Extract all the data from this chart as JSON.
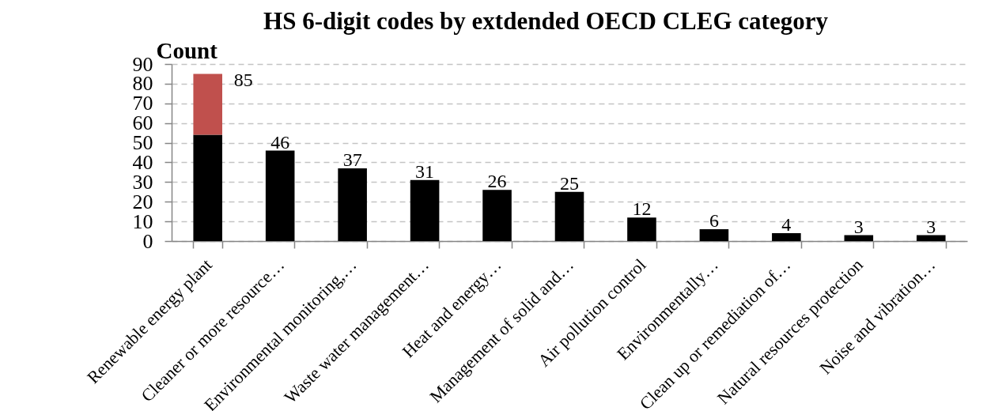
{
  "chart_data": {
    "type": "bar",
    "title": "HS 6-digit codes by extdended OECD CLEG category",
    "ylabel": "Count",
    "categories": [
      "Renewable energy plant",
      "Cleaner or more resource…",
      "Environmental monitoring,…",
      "Waste water management…",
      "Heat and energy…",
      "Management of solid and…",
      "Air pollution control",
      "Environmentally…",
      "Clean up or remediation of…",
      "Natural resources protection",
      "Noise and vibration…"
    ],
    "series": [
      {
        "color": "#000000",
        "values": [
          54,
          46,
          37,
          31,
          26,
          25,
          12,
          6,
          4,
          3,
          3
        ]
      },
      {
        "color": "#c0504d",
        "values": [
          31,
          null,
          null,
          null,
          null,
          null,
          null,
          null,
          null,
          null,
          null
        ]
      }
    ],
    "stacked": true,
    "totals": [
      "85",
      "46",
      "37",
      "31",
      "26",
      "25",
      "12",
      "6",
      "4",
      "3",
      "3"
    ],
    "ylim": [
      0,
      90
    ],
    "yticks": [
      0,
      10,
      20,
      30,
      40,
      50,
      60,
      70,
      80,
      90
    ],
    "grid": "y"
  }
}
